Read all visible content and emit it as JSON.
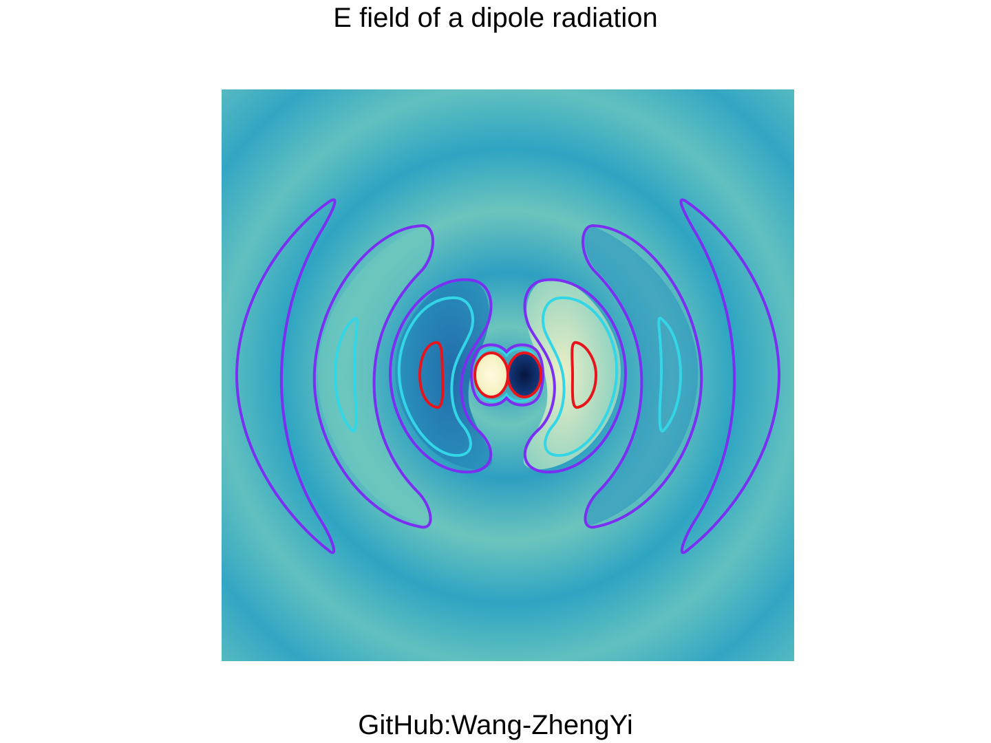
{
  "figure": {
    "title": "E field of a dipole radiation",
    "credit": "GitHub:Wang-ZhengYi"
  },
  "colors": {
    "background_field": "#3aa9c4",
    "ring_light": "#6cc5bd",
    "ring_dark": "#2b98bf",
    "deep_blue": "#0b1e5b",
    "cream": "#fdf8cf",
    "contour_purple": "#7b2ff2",
    "contour_cyan": "#33d6e6",
    "contour_red": "#e8141c"
  }
}
